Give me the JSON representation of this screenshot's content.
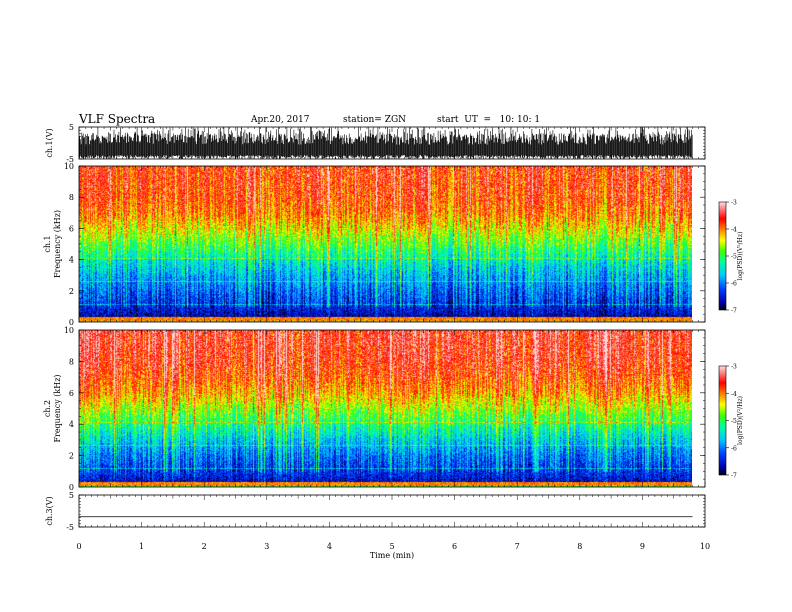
{
  "header": {
    "title": "VLF Spectra",
    "date": "Apr.20, 2017",
    "station": "station= ZGN",
    "start": "start  UT  =   10: 10: 1"
  },
  "colors": {
    "spectrum_ramp": [
      "#000000",
      "#0000aa",
      "#0040ff",
      "#00c8ff",
      "#00ffa0",
      "#40ff00",
      "#ffff00",
      "#ff8000",
      "#ff0000",
      "#ffd8d8"
    ],
    "trace": "#000000",
    "axis": "#000000"
  },
  "chart_data": [
    {
      "type": "line",
      "name": "ch1-waveform",
      "ylabel": "ch.1(V)",
      "yticks": [
        "5",
        "-5"
      ],
      "ylim": [
        -5,
        5
      ],
      "xlim": [
        0,
        10
      ],
      "trace": "dense noise filling roughly -5 to 3 V"
    },
    {
      "type": "heatmap",
      "name": "ch1-spectrogram",
      "ylabel_top": "ch.1",
      "ylabel": "Frequency  (kHz)",
      "yticks": [
        "0",
        "2",
        "4",
        "6",
        "8",
        "10"
      ],
      "ylim": [
        0,
        10
      ],
      "xlim": [
        0,
        10
      ],
      "data_end_min": 9.8,
      "colorbar": {
        "label": "log(PSD)(V²/Hz)",
        "ticks": [
          "-3",
          "-4",
          "-5",
          "-6",
          "-7"
        ],
        "range": [
          -7,
          -3
        ]
      },
      "profile_khz_vs_logpsd": [
        [
          0,
          -4.5
        ],
        [
          0.3,
          -6.7
        ],
        [
          1,
          -6.4
        ],
        [
          2,
          -6.1
        ],
        [
          3,
          -5.8
        ],
        [
          4,
          -5.4
        ],
        [
          5,
          -4.9
        ],
        [
          6,
          -4.4
        ],
        [
          7,
          -4.0
        ],
        [
          8,
          -3.8
        ],
        [
          10,
          -3.7
        ]
      ]
    },
    {
      "type": "heatmap",
      "name": "ch2-spectrogram",
      "ylabel_top": "ch.2",
      "ylabel": "Frequency  (kHz)",
      "yticks": [
        "0",
        "2",
        "4",
        "6",
        "8",
        "10"
      ],
      "ylim": [
        0,
        10
      ],
      "xlim": [
        0,
        10
      ],
      "data_end_min": 9.8,
      "colorbar": {
        "label": "log(PSD)(V²/Hz)",
        "ticks": [
          "-3",
          "-4",
          "-5",
          "-6",
          "-7"
        ],
        "range": [
          -7,
          -3
        ]
      },
      "profile_khz_vs_logpsd": [
        [
          0,
          -4.5
        ],
        [
          0.3,
          -6.6
        ],
        [
          1,
          -6.3
        ],
        [
          2,
          -6.0
        ],
        [
          3,
          -5.6
        ],
        [
          4,
          -5.1
        ],
        [
          5,
          -4.6
        ],
        [
          6,
          -4.1
        ],
        [
          7,
          -3.8
        ],
        [
          8,
          -3.6
        ],
        [
          10,
          -3.5
        ]
      ]
    },
    {
      "type": "line",
      "name": "ch3-waveform",
      "ylabel": "ch.3(V)",
      "yticks": [
        "5",
        "-5"
      ],
      "ylim": [
        -5,
        5
      ],
      "xlim": [
        0,
        10
      ],
      "trace": "flat line at about -1.8 V"
    }
  ],
  "xaxis": {
    "label": "Time  (min)",
    "ticks": [
      "0",
      "1",
      "2",
      "3",
      "4",
      "5",
      "6",
      "7",
      "8",
      "9",
      "10"
    ]
  }
}
